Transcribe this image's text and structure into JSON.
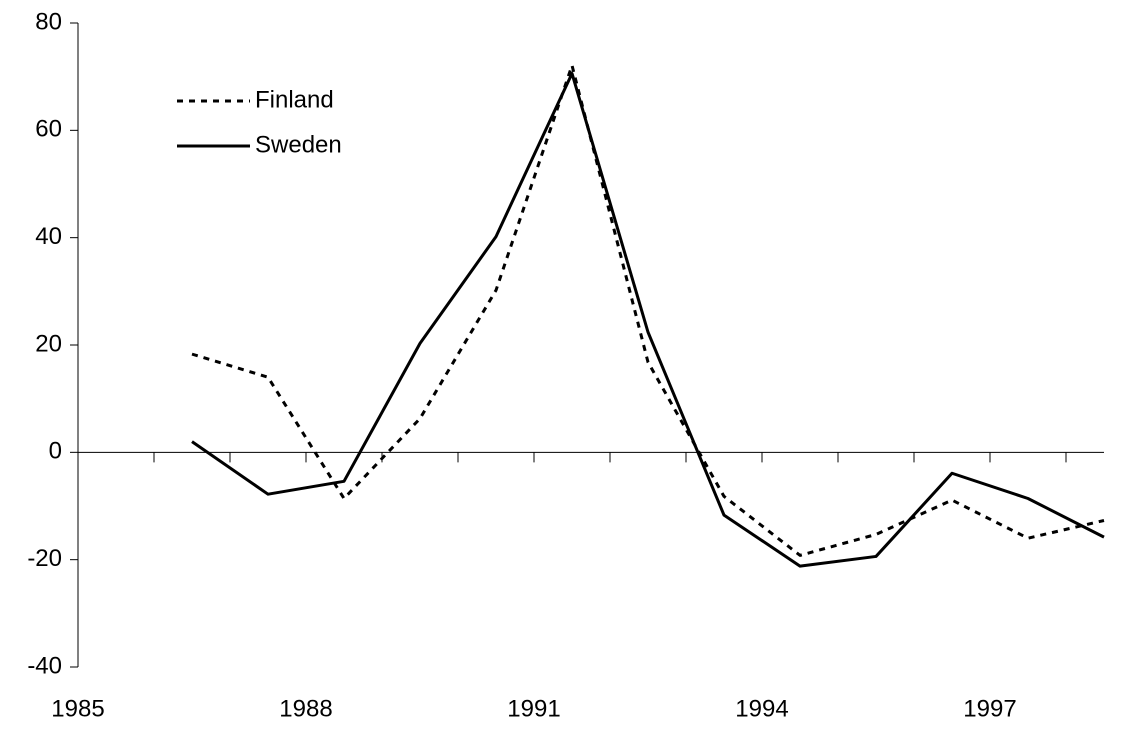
{
  "chart_data": {
    "type": "line",
    "x": [
      1986.5,
      1987.5,
      1988.5,
      1989.5,
      1990.5,
      1991.5,
      1992.5,
      1993.5,
      1994.5,
      1995.5,
      1996.5,
      1997.5,
      1998.5
    ],
    "series": [
      {
        "name": "Finland",
        "color": "#000000",
        "dash": "dotted",
        "values": [
          18.3,
          14,
          -8.6,
          6.3,
          30.2,
          72.1,
          16.8,
          -8.2,
          -19.2,
          -15.3,
          -8.9,
          -16,
          -12.7
        ]
      },
      {
        "name": "Sweden",
        "color": "#000000",
        "dash": "solid",
        "values": [
          2,
          -7.8,
          -5.4,
          20.3,
          40.2,
          70.6,
          22.4,
          -11.7,
          -21.2,
          -19.4,
          -3.9,
          -8.6,
          -15.8
        ]
      }
    ],
    "xlim": [
      1985,
      1998.5
    ],
    "xticks": [
      1985,
      {
        "value": 1986,
        "label": null
      },
      {
        "value": 1987,
        "label": null
      },
      1988,
      {
        "value": 1989,
        "label": null
      },
      {
        "value": 1990,
        "label": null
      },
      1991,
      {
        "value": 1992,
        "label": null
      },
      {
        "value": 1993,
        "label": null
      },
      1994,
      {
        "value": 1995,
        "label": null
      },
      {
        "value": 1996,
        "label": null
      },
      1997,
      {
        "value": 1998,
        "label": null
      }
    ],
    "ylim": [
      -40,
      80
    ],
    "yticks": [
      -40,
      -20,
      0,
      20,
      40,
      60,
      80
    ],
    "grid": false,
    "legend": "upper-left"
  }
}
